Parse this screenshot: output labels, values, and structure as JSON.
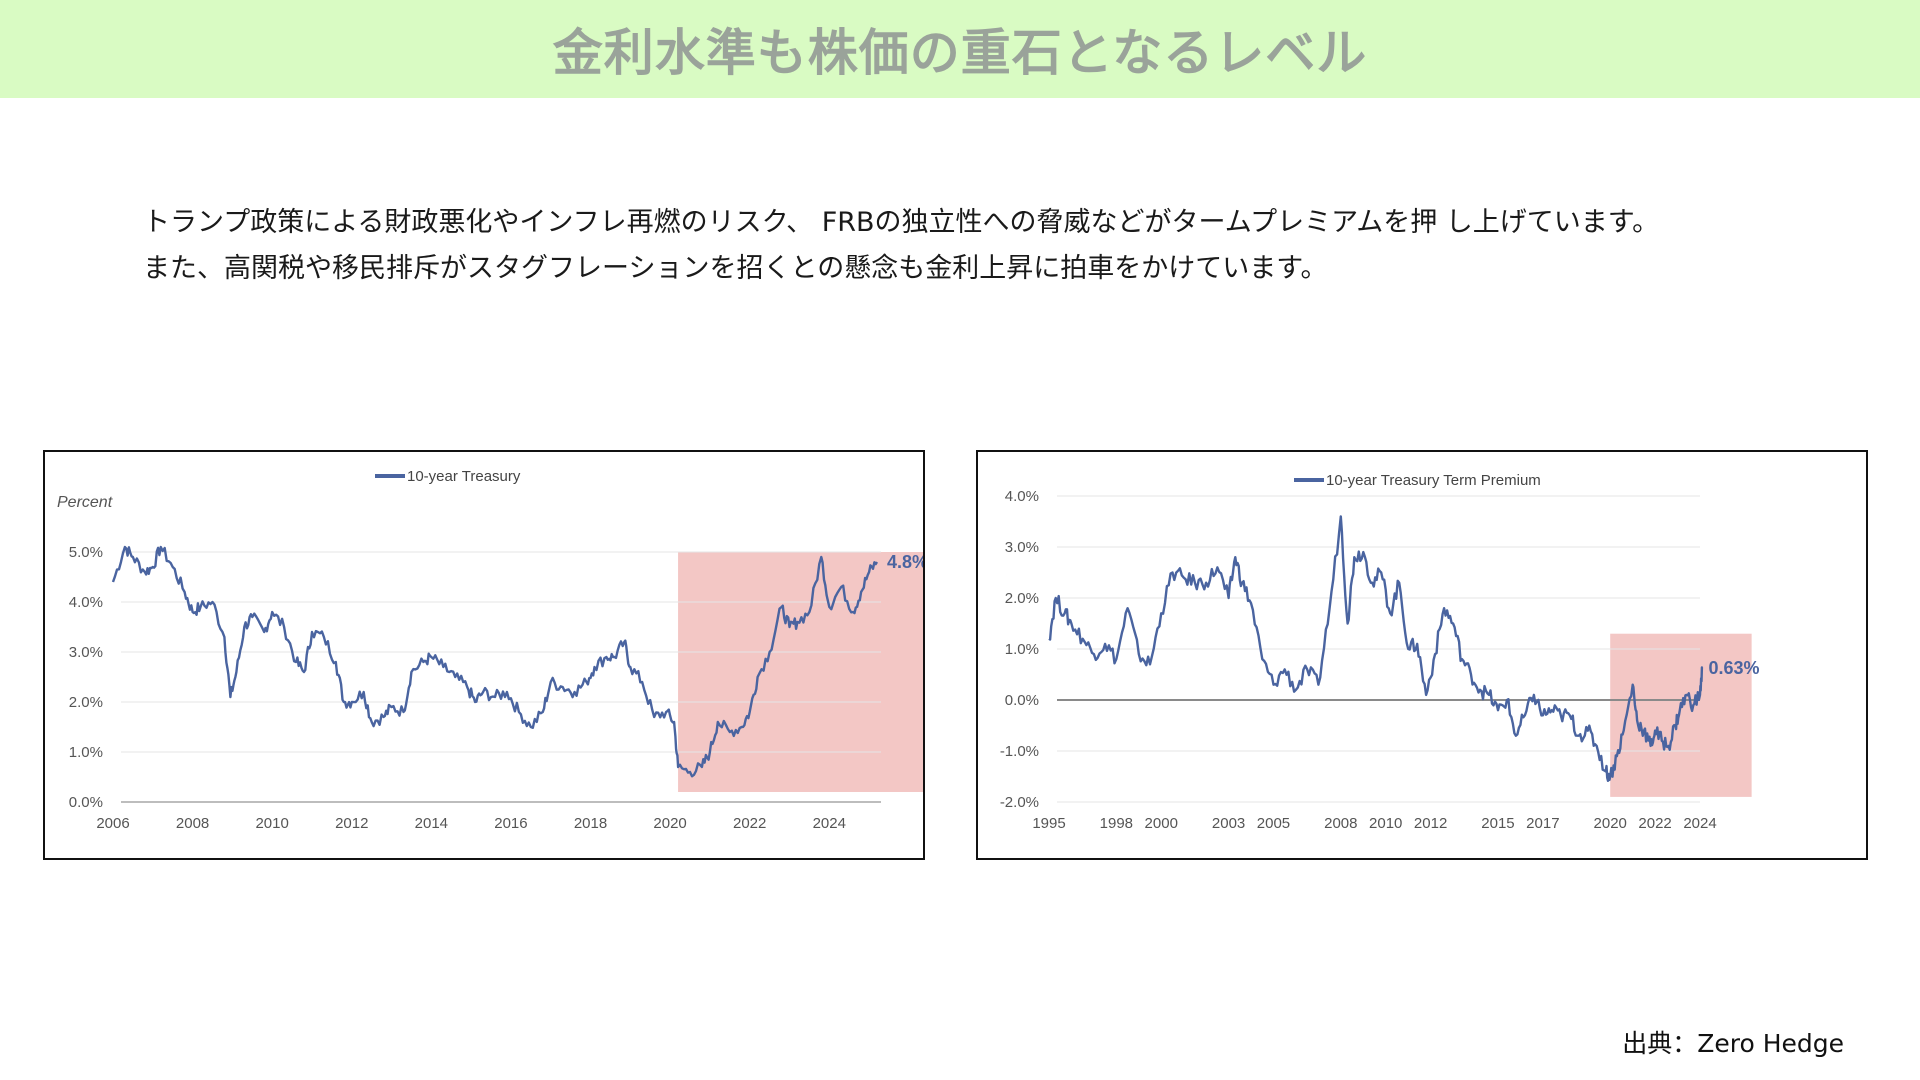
{
  "page": {
    "title": "金利水準も株価の重石となるレベル",
    "description": [
      "トランプ政策による財政悪化やインフレ再燃のリスク、 FRBの独立性への脅威などがタームプレミアムを押 し上げています。",
      "また、高関税や移民排斥がスタグフレーションを招くとの懸念も金利上昇に拍車をかけています。"
    ],
    "source": "出典：Zero Hedge"
  },
  "colors": {
    "title_bg": "#d9fbc3",
    "title_text": "#9aa39a",
    "series_line": "#4a64a0",
    "highlight": "#f2c4c2",
    "annotation_text": "#4a64a0",
    "axis_text": "#555555",
    "grid": "#e6e6e6",
    "zero_line": "#8a8a8a"
  },
  "chart_data": [
    {
      "type": "line",
      "title": "",
      "axis_title": "Percent",
      "legend": [
        "10-year Treasury"
      ],
      "legend_position": "top-center",
      "xlabel": "",
      "ylabel": "",
      "xlim": [
        2006,
        2025.3
      ],
      "ylim": [
        0,
        5
      ],
      "x_ticks": [
        2006,
        2008,
        2010,
        2012,
        2014,
        2016,
        2018,
        2020,
        2022,
        2024
      ],
      "y_ticks": [
        0,
        1,
        2,
        3,
        4,
        5
      ],
      "y_tick_labels": [
        "0.0%",
        "1.0%",
        "2.0%",
        "3.0%",
        "4.0%",
        "5.0%"
      ],
      "grid": true,
      "highlight_region": {
        "x": [
          2020.2,
          2026.4
        ],
        "y": [
          0.2,
          5.0
        ]
      },
      "annotation": {
        "text": "4.8%",
        "x": 2025.3,
        "y": 4.8
      },
      "series": [
        {
          "name": "10-year Treasury",
          "x": [
            2006.0,
            2006.3,
            2006.5,
            2006.8,
            2007.0,
            2007.2,
            2007.5,
            2007.8,
            2008.0,
            2008.2,
            2008.5,
            2008.8,
            2008.95,
            2009.1,
            2009.3,
            2009.5,
            2009.8,
            2010.0,
            2010.3,
            2010.6,
            2010.8,
            2011.0,
            2011.3,
            2011.6,
            2011.8,
            2012.0,
            2012.3,
            2012.5,
            2012.8,
            2013.0,
            2013.3,
            2013.5,
            2013.8,
            2014.0,
            2014.3,
            2014.6,
            2014.9,
            2015.1,
            2015.3,
            2015.6,
            2015.9,
            2016.2,
            2016.5,
            2016.8,
            2017.0,
            2017.3,
            2017.6,
            2017.9,
            2018.1,
            2018.4,
            2018.6,
            2018.85,
            2019.0,
            2019.3,
            2019.6,
            2019.9,
            2020.1,
            2020.2,
            2020.5,
            2020.8,
            2021.0,
            2021.2,
            2021.5,
            2021.8,
            2022.0,
            2022.2,
            2022.5,
            2022.8,
            2023.0,
            2023.2,
            2023.5,
            2023.8,
            2024.0,
            2024.3,
            2024.6,
            2024.8,
            2025.0,
            2025.2
          ],
          "y": [
            4.4,
            5.1,
            4.9,
            4.6,
            4.7,
            5.1,
            4.7,
            4.2,
            3.8,
            3.9,
            4.0,
            3.3,
            2.1,
            2.6,
            3.5,
            3.7,
            3.4,
            3.8,
            3.5,
            2.8,
            2.6,
            3.4,
            3.3,
            2.8,
            2.0,
            2.0,
            2.2,
            1.6,
            1.7,
            1.9,
            1.8,
            2.6,
            2.8,
            2.9,
            2.7,
            2.5,
            2.3,
            2.0,
            2.2,
            2.1,
            2.2,
            1.8,
            1.5,
            1.8,
            2.4,
            2.3,
            2.2,
            2.4,
            2.7,
            2.9,
            2.9,
            3.2,
            2.7,
            2.4,
            1.7,
            1.8,
            1.6,
            0.7,
            0.6,
            0.7,
            1.0,
            1.6,
            1.4,
            1.5,
            1.8,
            2.5,
            3.0,
            3.9,
            3.5,
            3.6,
            3.8,
            4.9,
            3.9,
            4.3,
            3.8,
            4.2,
            4.6,
            4.8
          ]
        }
      ]
    },
    {
      "type": "line",
      "title": "",
      "legend": [
        "10-year Treasury Term Premium"
      ],
      "legend_position": "top-center",
      "xlabel": "",
      "ylabel": "",
      "xlim": [
        1995,
        2024
      ],
      "ylim": [
        -2,
        4
      ],
      "x_ticks": [
        1995,
        1998,
        2000,
        2003,
        2005,
        2008,
        2010,
        2012,
        2015,
        2017,
        2020,
        2022,
        2024
      ],
      "y_ticks": [
        -2,
        -1,
        0,
        1,
        2,
        3,
        4
      ],
      "y_tick_labels": [
        "-2.0%",
        "-1.0%",
        "0.0%",
        "1.0%",
        "2.0%",
        "3.0%",
        "4.0%"
      ],
      "grid": true,
      "zero_line": true,
      "highlight_region": {
        "x": [
          2020.0,
          2026.3
        ],
        "y": [
          -1.9,
          1.3
        ]
      },
      "annotation": {
        "text": "0.63%",
        "x": 2024.2,
        "y": 0.63
      },
      "series": [
        {
          "name": "10-year Treasury Term Premium",
          "x": [
            1995.0,
            1995.3,
            1995.7,
            1996.0,
            1996.5,
            1997.0,
            1997.5,
            1998.0,
            1998.5,
            1999.0,
            1999.5,
            2000.0,
            2000.5,
            2001.0,
            2001.5,
            2002.0,
            2002.5,
            2003.0,
            2003.3,
            2003.6,
            2004.0,
            2004.5,
            2005.0,
            2005.5,
            2006.0,
            2006.5,
            2007.0,
            2007.5,
            2008.0,
            2008.3,
            2008.6,
            2009.0,
            2009.4,
            2009.8,
            2010.2,
            2010.6,
            2011.0,
            2011.4,
            2011.8,
            2012.2,
            2012.6,
            2013.0,
            2013.4,
            2013.8,
            2014.2,
            2014.6,
            2015.0,
            2015.4,
            2015.8,
            2016.2,
            2016.6,
            2017.0,
            2017.4,
            2017.8,
            2018.2,
            2018.6,
            2019.0,
            2019.4,
            2019.8,
            2020.0,
            2020.3,
            2020.6,
            2021.0,
            2021.2,
            2021.5,
            2021.8,
            2022.0,
            2022.3,
            2022.6,
            2022.9,
            2023.1,
            2023.4,
            2023.7,
            2024.0,
            2024.1
          ],
          "y": [
            1.2,
            2.0,
            1.7,
            1.5,
            1.2,
            0.9,
            1.1,
            0.8,
            1.8,
            0.9,
            0.7,
            1.7,
            2.5,
            2.4,
            2.3,
            2.3,
            2.6,
            2.0,
            2.8,
            2.3,
            1.9,
            0.8,
            0.3,
            0.6,
            0.2,
            0.6,
            0.3,
            1.8,
            3.6,
            1.5,
            2.8,
            2.9,
            2.3,
            2.5,
            1.7,
            2.3,
            1.0,
            1.1,
            0.1,
            0.9,
            1.8,
            1.5,
            0.8,
            0.5,
            0.2,
            0.1,
            -0.2,
            0.0,
            -0.7,
            -0.3,
            0.1,
            -0.3,
            -0.2,
            -0.3,
            -0.3,
            -0.7,
            -0.6,
            -0.9,
            -1.4,
            -1.5,
            -1.1,
            -0.6,
            0.3,
            -0.4,
            -0.6,
            -0.9,
            -0.6,
            -0.8,
            -0.9,
            -0.5,
            -0.2,
            0.1,
            -0.1,
            0.1,
            0.63
          ]
        }
      ]
    }
  ]
}
